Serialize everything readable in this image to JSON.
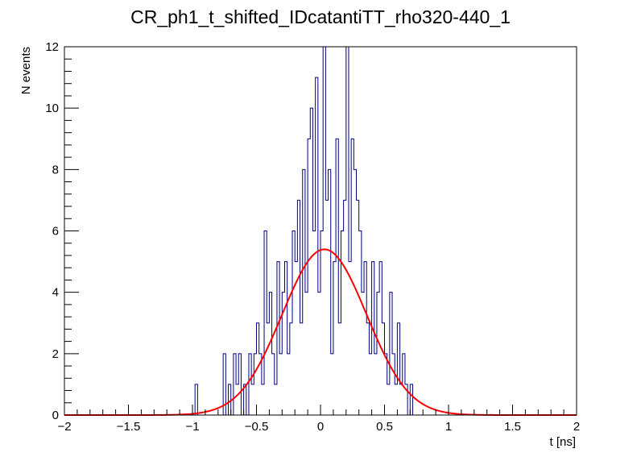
{
  "chart_data": {
    "type": "histogram",
    "title": "CR_ph1_t_shifted_IDcatantiTT_rho320-440_1",
    "xlabel": "t [ns]",
    "ylabel": "N events",
    "xlim": [
      -2,
      2
    ],
    "ylim": [
      0,
      12
    ],
    "x_ticks": [
      {
        "value": -2,
        "label": "−2"
      },
      {
        "value": -1.5,
        "label": "−1.5"
      },
      {
        "value": -1,
        "label": "−1"
      },
      {
        "value": -0.5,
        "label": "−0.5"
      },
      {
        "value": 0,
        "label": "0"
      },
      {
        "value": 0.5,
        "label": "0.5"
      },
      {
        "value": 1,
        "label": "1"
      },
      {
        "value": 1.5,
        "label": "1.5"
      },
      {
        "value": 2,
        "label": "2"
      }
    ],
    "y_ticks": [
      {
        "value": 0,
        "label": "0"
      },
      {
        "value": 2,
        "label": "2"
      },
      {
        "value": 4,
        "label": "4"
      },
      {
        "value": 6,
        "label": "6"
      },
      {
        "value": 8,
        "label": "8"
      },
      {
        "value": 10,
        "label": "10"
      },
      {
        "value": 12,
        "label": "12"
      }
    ],
    "grid": false,
    "histogram": {
      "bin_low": -2,
      "bin_width": 0.02,
      "counts": [
        0,
        0,
        0,
        0,
        0,
        0,
        0,
        0,
        0,
        0,
        0,
        0,
        0,
        0,
        0,
        0,
        0,
        0,
        0,
        0,
        0,
        0,
        0,
        0,
        0,
        0,
        0,
        0,
        0,
        0,
        0,
        0,
        0,
        0,
        0,
        0,
        0,
        0,
        0,
        0,
        0,
        0,
        0,
        0,
        0,
        0,
        0,
        0,
        0,
        0,
        0,
        1,
        0,
        0,
        0,
        0,
        0,
        0,
        0,
        0,
        0,
        0,
        2,
        0,
        1,
        0,
        2,
        1,
        2,
        0,
        1,
        0,
        2,
        1,
        2,
        3,
        2,
        1,
        6,
        3,
        4,
        2,
        1,
        5,
        2,
        4,
        5,
        2,
        3,
        6,
        5,
        7,
        3,
        8,
        4,
        9,
        10,
        6,
        11,
        4,
        6,
        12,
        7,
        8,
        2,
        5,
        9,
        3,
        6,
        7,
        12,
        5,
        9,
        8,
        7,
        6,
        4,
        5,
        3,
        2,
        5,
        2,
        4,
        5,
        3,
        2,
        1,
        4,
        2,
        1,
        3,
        1,
        2,
        1,
        0,
        1,
        0,
        0,
        0,
        0,
        0,
        0,
        0,
        0,
        0,
        0,
        0,
        0,
        0,
        0,
        0,
        0,
        0,
        0,
        0,
        0,
        0,
        0,
        0,
        0,
        0,
        0,
        0,
        0,
        0,
        0,
        0,
        0,
        0,
        0,
        0,
        0,
        0,
        0,
        0,
        0,
        0,
        0,
        0,
        0,
        0,
        0,
        0,
        0,
        0,
        0,
        0,
        0,
        0,
        0,
        0,
        0,
        0,
        0,
        0,
        0,
        0,
        0
      ],
      "color": "#000080"
    },
    "fit": {
      "type": "gaussian",
      "constant": 5.4,
      "mean": 0.03,
      "sigma": 0.33,
      "color": "#ff0000"
    }
  }
}
